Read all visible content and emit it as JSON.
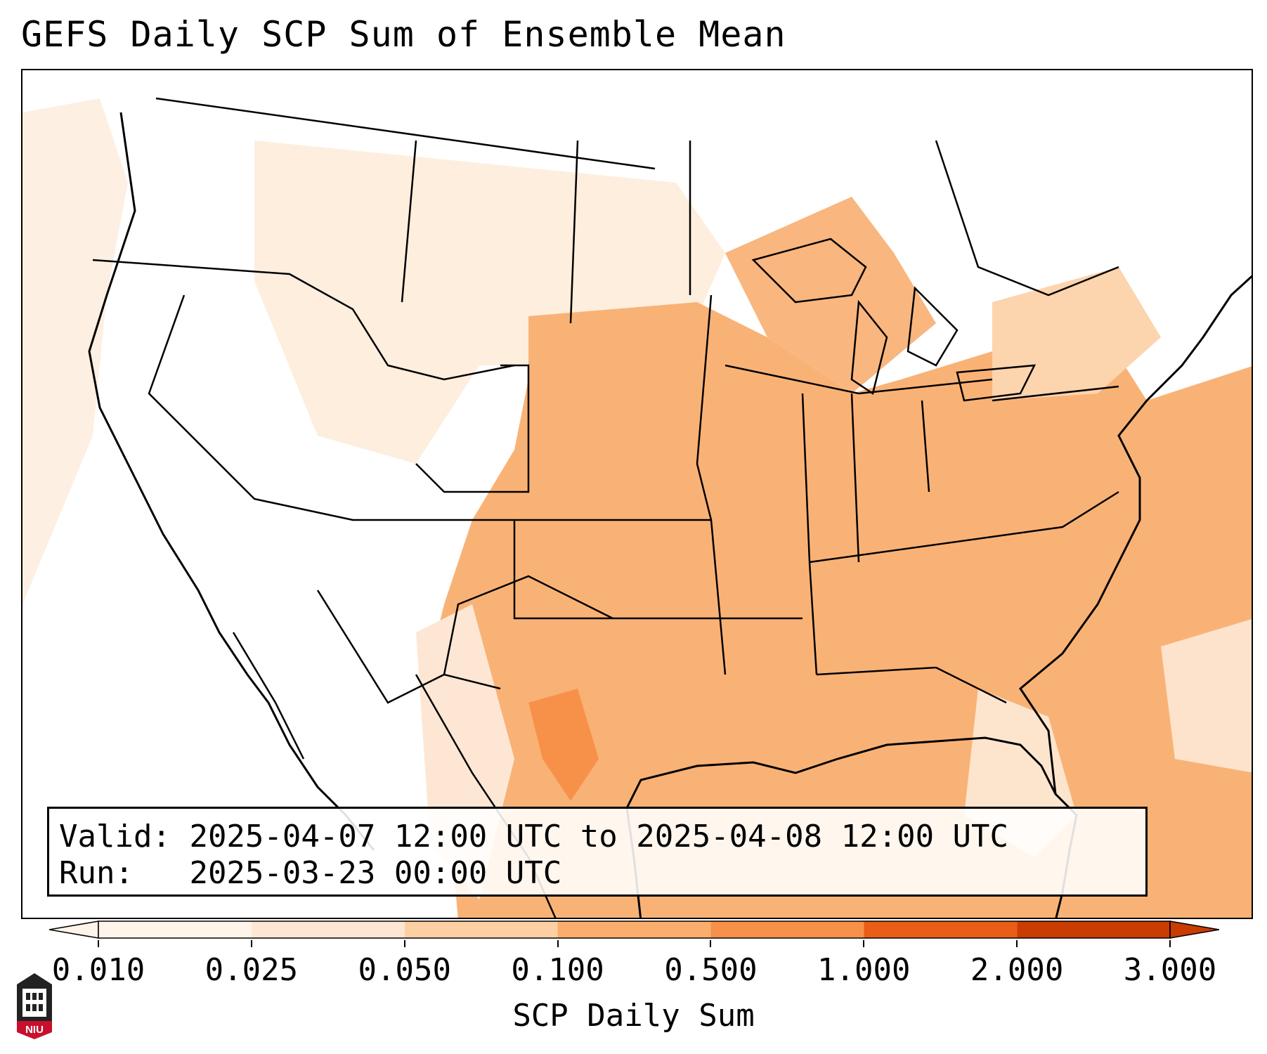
{
  "title": "GEFS Daily SCP Sum of Ensemble Mean",
  "info": {
    "valid_label": "Valid:",
    "valid_value": "2025-04-07 12:00 UTC to 2025-04-08 12:00 UTC",
    "run_label": "Run:",
    "run_value": "2025-03-23 00:00 UTC"
  },
  "colorbar": {
    "title": "SCP Daily Sum",
    "levels": [
      "0.010",
      "0.025",
      "0.050",
      "0.100",
      "0.500",
      "1.000",
      "2.000",
      "3.000"
    ],
    "colors": [
      "#fff4ea",
      "#fee7d2",
      "#fdd0a4",
      "#fbae6b",
      "#f7904a",
      "#ea5d17",
      "#c93d02"
    ]
  },
  "map": {
    "projection": "Lambert Conformal (CONUS)",
    "land_outline_color": "#000000",
    "shading_colors": {
      "none": "#ffffff",
      "very_light": "#fff1e4",
      "light": "#fde3cc",
      "medium_light": "#fccd9c",
      "medium": "#f9b276",
      "strong": "#f7914a"
    }
  },
  "logo": {
    "label": "NIU",
    "color": "#c8102e"
  }
}
